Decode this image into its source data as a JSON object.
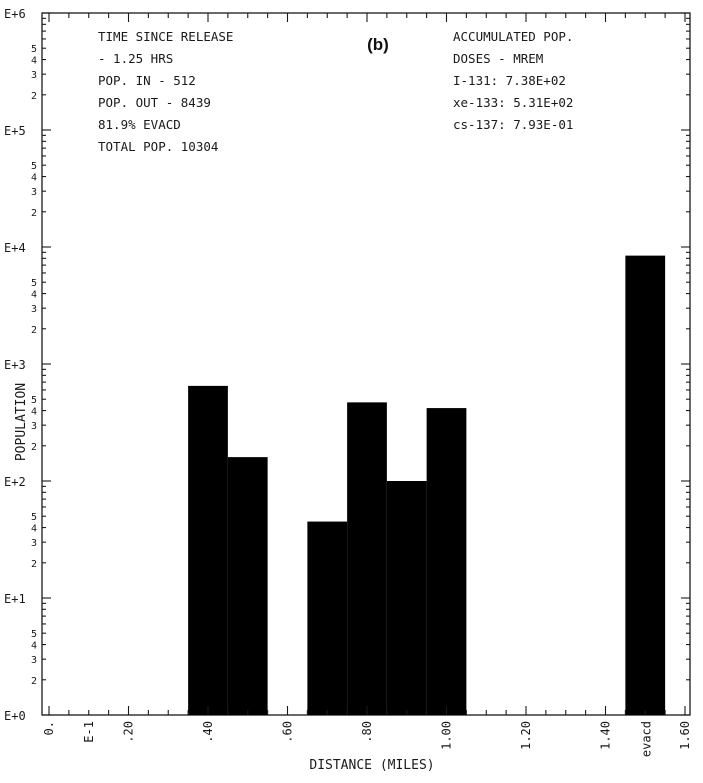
{
  "chart_data": {
    "type": "bar",
    "panel_label": "(b)",
    "xlabel": "DISTANCE (MILES)",
    "ylabel": "POPULATION",
    "y_scale": "log",
    "ylim": [
      1,
      1000000
    ],
    "xlim": [
      0,
      1.6
    ],
    "x_tick_labels": [
      "0.",
      "E-1",
      ".20",
      ".40",
      ".60",
      ".80",
      "1.00",
      "1.20",
      "1.40",
      "1.60"
    ],
    "y_tick_labels": [
      "E+0",
      "E+1",
      "E+2",
      "E+3",
      "E+4",
      "E+5",
      "E+6"
    ],
    "minor_tick_labels": [
      "2",
      "3",
      "4",
      "5"
    ],
    "bars": [
      {
        "x_start": 0.35,
        "x_end": 0.45,
        "value": 650
      },
      {
        "x_start": 0.45,
        "x_end": 0.55,
        "value": 160
      },
      {
        "x_start": 0.65,
        "x_end": 0.75,
        "value": 45
      },
      {
        "x_start": 0.75,
        "x_end": 0.85,
        "value": 470
      },
      {
        "x_start": 0.85,
        "x_end": 0.95,
        "value": 100
      },
      {
        "x_start": 0.95,
        "x_end": 1.05,
        "value": 420
      }
    ],
    "evacuated_bar": {
      "label": "evacd",
      "x_start": 1.45,
      "x_end": 1.55,
      "value": 8439
    },
    "annotations_left": [
      "TIME SINCE RELEASE",
      "- 1.25 HRS",
      "POP. IN  -   512",
      "POP. OUT -  8439",
      " 81.9% EVACD",
      "TOTAL POP.    10304"
    ],
    "annotations_right": [
      "ACCUMULATED POP.",
      "DOSES - MREM",
      "I-131: 7.38E+02",
      "xe-133: 5.31E+02",
      "cs-137: 7.93E-01"
    ]
  }
}
